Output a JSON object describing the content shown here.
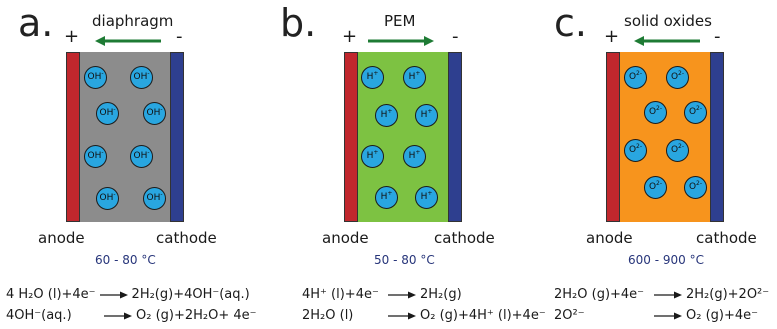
{
  "panels": [
    {
      "letter": "a.",
      "plus": "+",
      "minus": "-",
      "medium": "diaphragm",
      "ion_label": "OH",
      "ion_charge": "-",
      "anode": "anode",
      "cathode": "cathode",
      "temperature": "60 - 80 °C",
      "eq1_left": "4 H₂O (l)+4e⁻",
      "eq1_right": "2H₂(g)+4OH⁻(aq.)",
      "eq2_left": "4OH⁻(aq.)",
      "eq2_right": "O₂ (g)+2H₂O+ 4e⁻"
    },
    {
      "letter": "b.",
      "plus": "+",
      "minus": "-",
      "medium": "PEM",
      "ion_label": "H",
      "ion_charge": "+",
      "anode": "anode",
      "cathode": "cathode",
      "temperature": "50 - 80 °C",
      "eq1_left": "4H⁺ (l)+4e⁻",
      "eq1_right": "2H₂(g)",
      "eq2_left": "2H₂O (l)",
      "eq2_right": "O₂ (g)+4H⁺ (l)+4e⁻"
    },
    {
      "letter": "c.",
      "plus": "+",
      "minus": "-",
      "medium": "solid oxides",
      "ion_label": "O",
      "ion_charge": "2-",
      "anode": "anode",
      "cathode": "cathode",
      "temperature": "600 - 900 °C",
      "eq1_left": "2H₂O (g)+4e⁻",
      "eq1_right": "2H₂(g)+2O²⁻",
      "eq2_left": "2O²⁻",
      "eq2_right": "O₂ (g)+4e⁻"
    }
  ],
  "colors": {
    "anode": "#c1272d",
    "cathode": "#2e3f8f",
    "ion": "#29a6e0",
    "arrow": "#1e7b34",
    "electrolyte_a": "#8c8c8c",
    "electrolyte_b": "#7dc242",
    "electrolyte_c": "#f7941d",
    "temperature_text": "#27357a"
  }
}
